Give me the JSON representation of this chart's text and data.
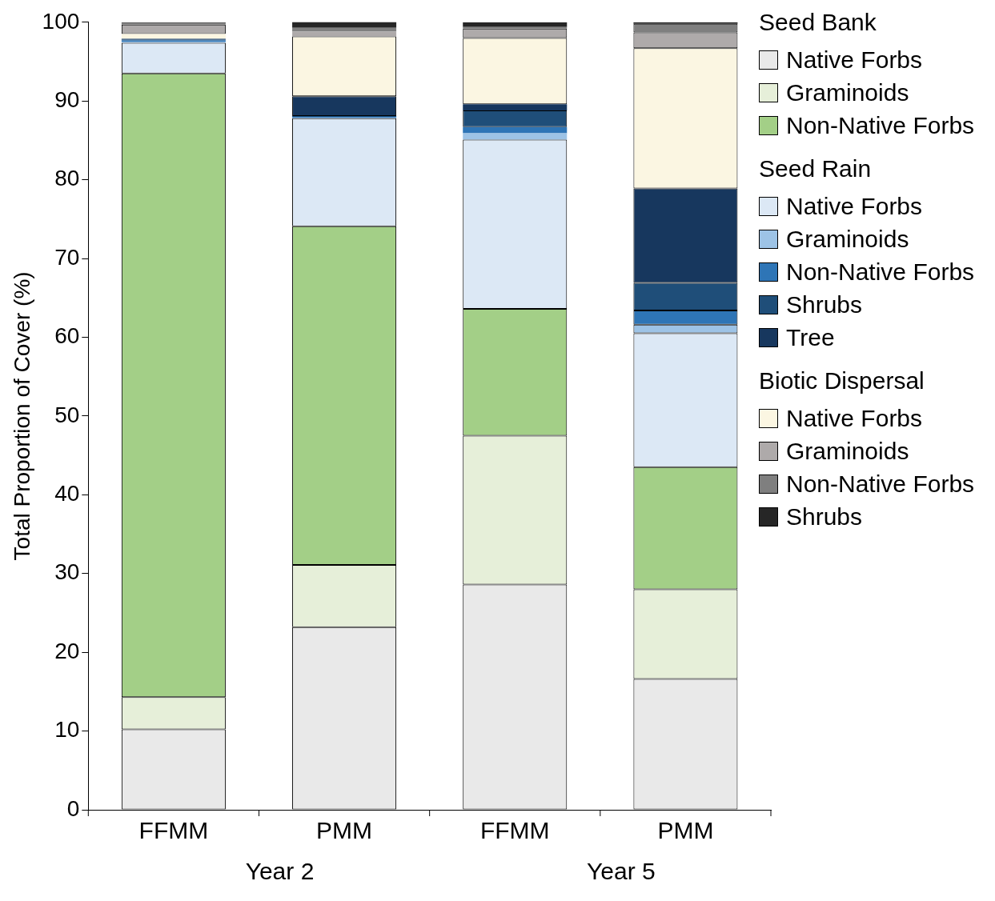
{
  "chart_data": {
    "type": "bar",
    "stacked": true,
    "ylabel": "Total Proportion of Cover (%)",
    "categories": [
      "FFMM",
      "PMM",
      "FFMM",
      "PMM"
    ],
    "annotations": [
      "Year 2",
      "Year 5"
    ],
    "legend_title": [
      "Seed Bank",
      "Seed Rain",
      "Biotic Dispersal"
    ],
    "legend": "right",
    "grid": false,
    "ylim": [
      0,
      100
    ],
    "yticks": [
      0,
      10,
      20,
      30,
      40,
      50,
      60,
      70,
      80,
      90,
      100
    ],
    "series": [
      {
        "name": "Native Forbs",
        "color": "#e9e9e9",
        "values": [
          10.2,
          23.2,
          28.6,
          16.6
        ]
      },
      {
        "name": "Graminoids",
        "color": "#e6efd9",
        "values": [
          4.1,
          7.9,
          18.9,
          11.4
        ]
      },
      {
        "name": "Non-Native Forbs",
        "color": "#a3cf87",
        "values": [
          79.2,
          43.0,
          16.1,
          15.5
        ]
      },
      {
        "name": "Native Forbs",
        "color": "#dce8f5",
        "values": [
          3.9,
          13.7,
          21.5,
          17.0
        ]
      },
      {
        "name": "Graminoids",
        "color": "#9dc3e6",
        "values": [
          0.1,
          0.1,
          0.8,
          1.1
        ]
      },
      {
        "name": "Non-Native Forbs",
        "color": "#2e75b6",
        "values": [
          0.2,
          0.1,
          0.8,
          1.8
        ]
      },
      {
        "name": "Shrubs",
        "color": "#1f4e79",
        "values": [
          0.1,
          0.1,
          2.1,
          3.5
        ]
      },
      {
        "name": "Tree",
        "color": "#17375e",
        "values": [
          0.1,
          2.5,
          0.8,
          12.0
        ]
      },
      {
        "name": "Native Forbs",
        "color": "#fbf6e2",
        "values": [
          0.6,
          7.6,
          8.4,
          17.8
        ]
      },
      {
        "name": "Graminoids",
        "color": "#aeaaaa",
        "values": [
          1.2,
          0.6,
          1.2,
          2.0
        ]
      },
      {
        "name": "Non-Native Forbs",
        "color": "#7f7f7f",
        "values": [
          0.2,
          0.5,
          0.2,
          1.1
        ]
      },
      {
        "name": "Shrubs",
        "color": "#262626",
        "values": [
          0.1,
          0.8,
          0.6,
          0.2
        ]
      }
    ]
  }
}
